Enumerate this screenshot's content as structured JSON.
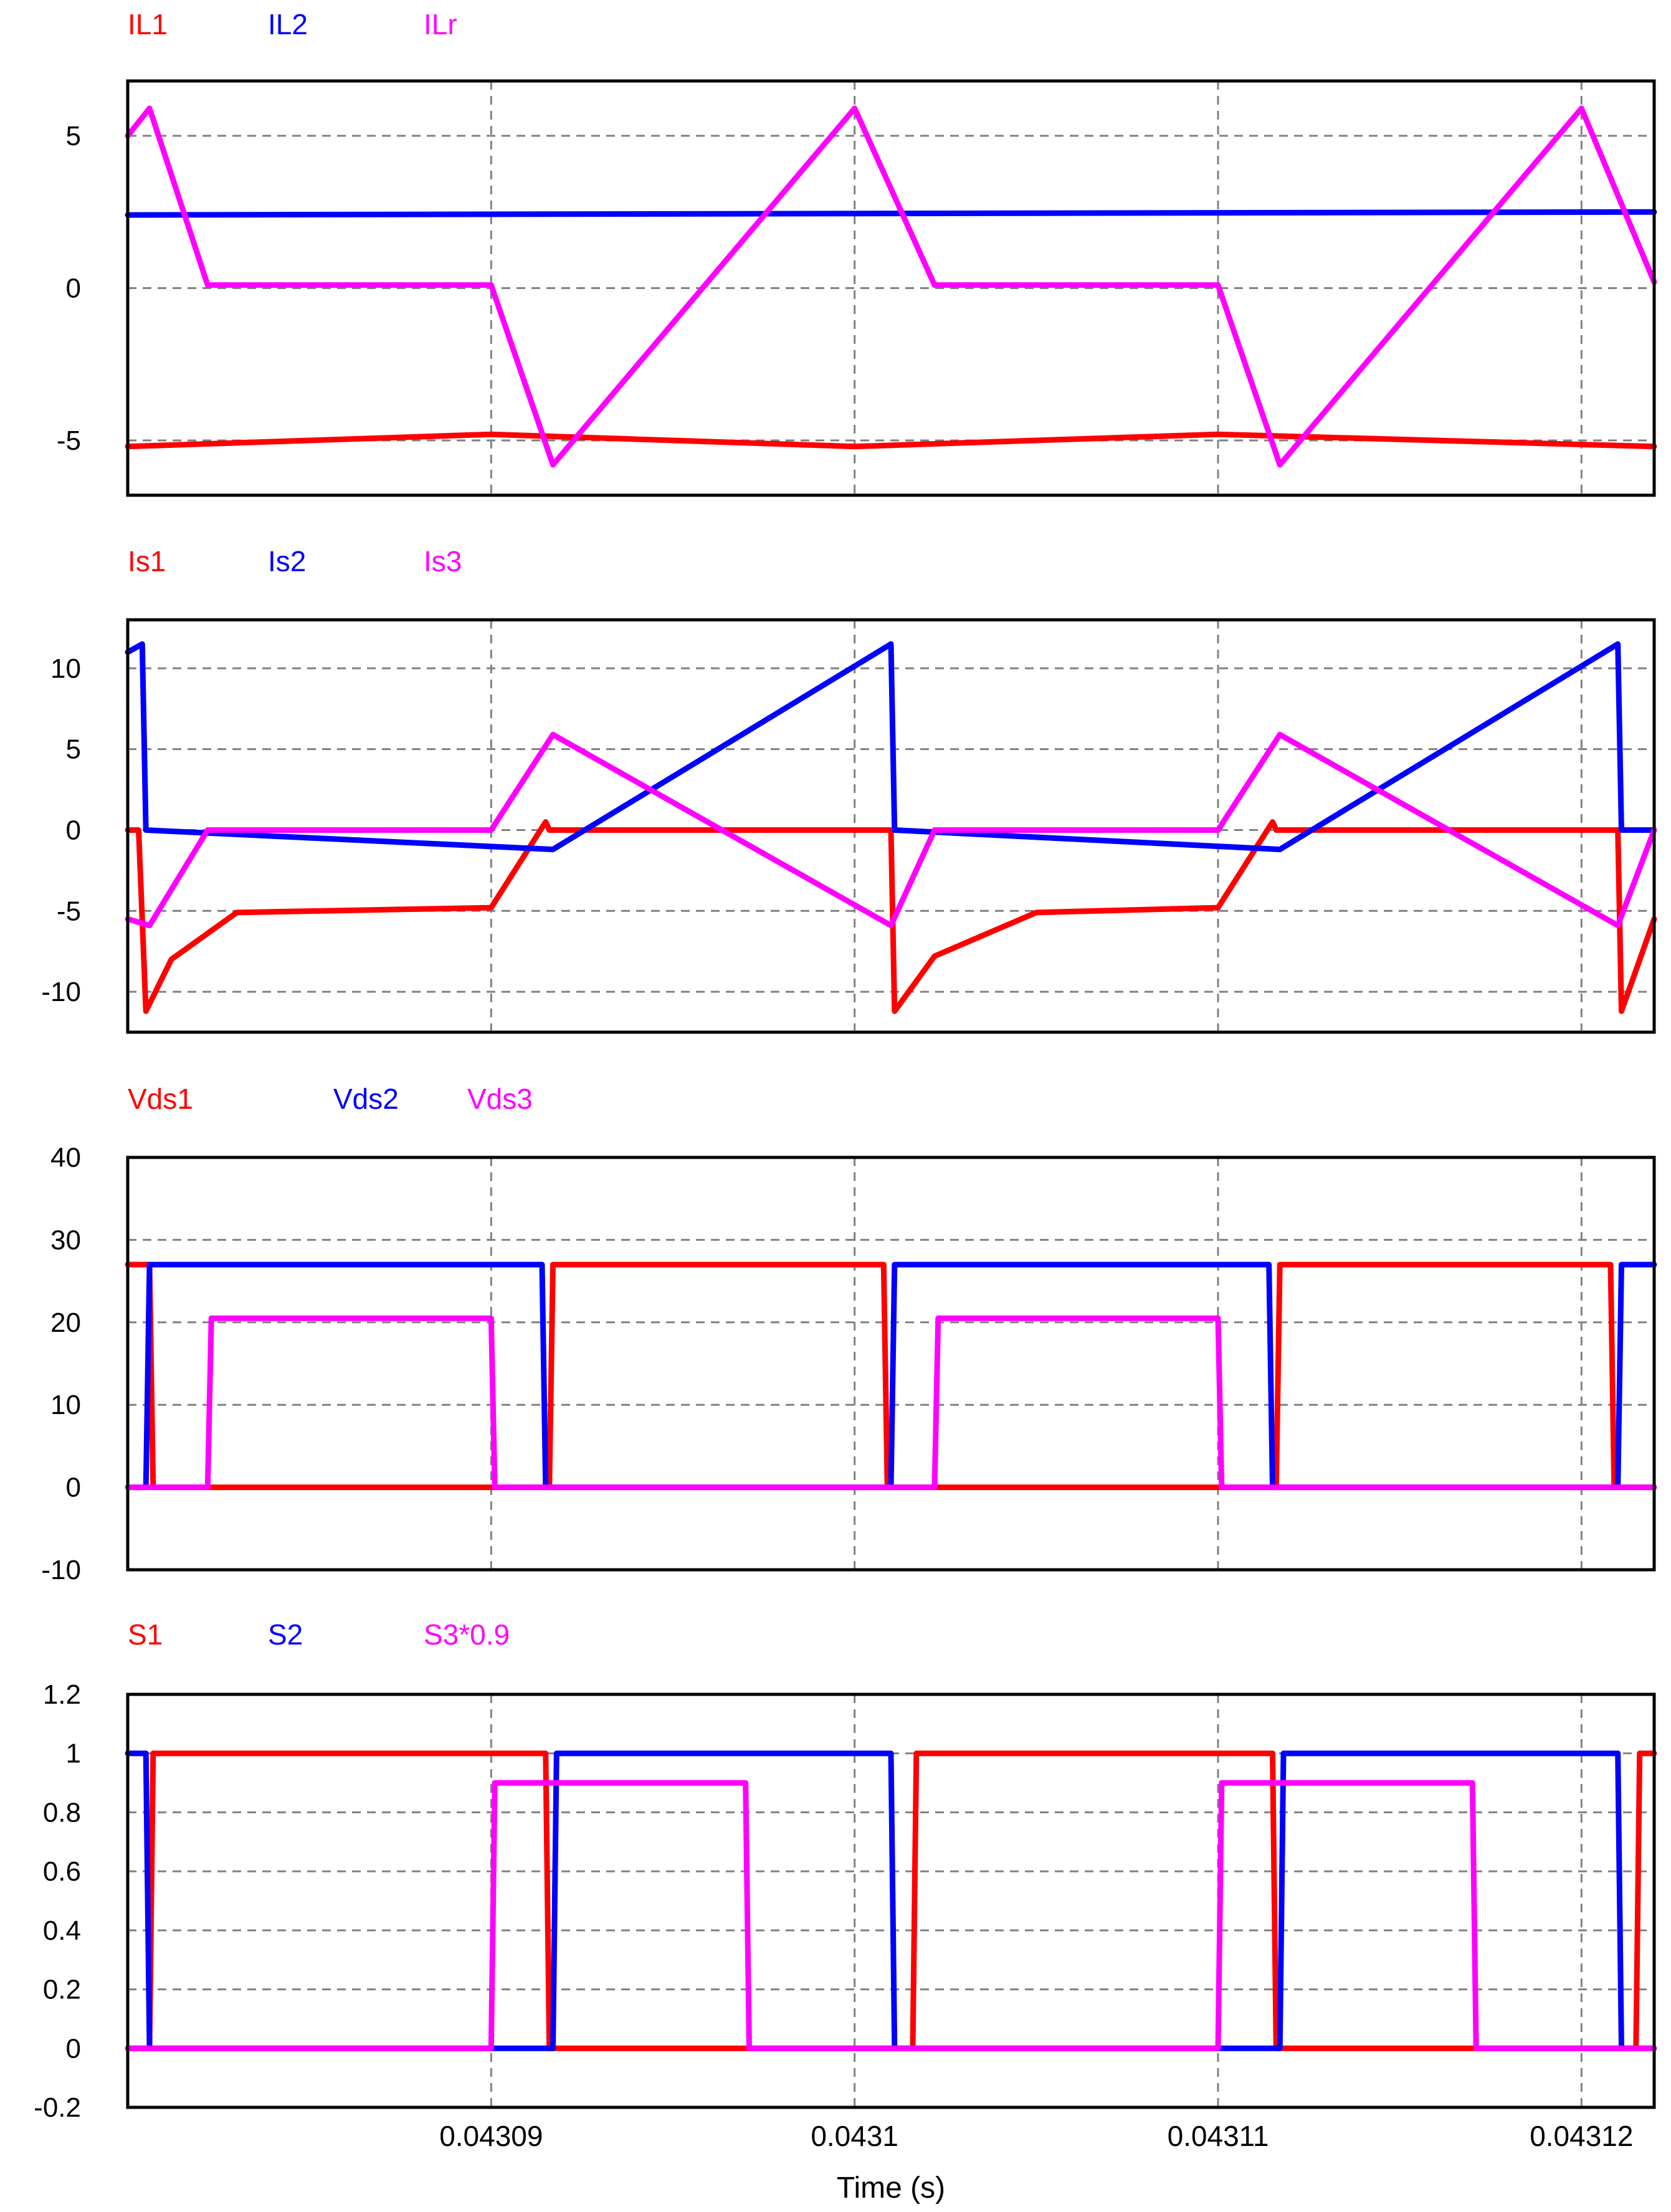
{
  "colors": {
    "red": "#ff0000",
    "blue": "#0000ff",
    "magenta": "#ff00ff",
    "frame": "#000000",
    "grid": "#808080",
    "axis_text": "#000000"
  },
  "chart_data": [
    {
      "type": "line",
      "title": "",
      "xlabel": "",
      "ylabel": "",
      "xlim": [
        0.04308,
        0.043122
      ],
      "ylim": [
        -6.8,
        6.8
      ],
      "xticks": [
        0.04309,
        0.0431,
        0.04311,
        0.04312
      ],
      "yticks": [
        -5,
        0,
        5
      ],
      "ytick_labels": [
        "-5",
        "0",
        "5"
      ],
      "grid": true,
      "legend": "top-left",
      "series": [
        {
          "name": "IL1",
          "color": "#ff0000",
          "x": [
            0.04308,
            0.04309,
            0.0431,
            0.04311,
            0.043122
          ],
          "y": [
            -5.2,
            -4.8,
            -5.2,
            -4.8,
            -5.2
          ]
        },
        {
          "name": "IL2",
          "color": "#0000ff",
          "x": [
            0.04308,
            0.043122
          ],
          "y": [
            2.4,
            2.5
          ]
        },
        {
          "name": "ILr",
          "color": "#ff00ff",
          "x": [
            0.04308,
            0.04308,
            0.0430806,
            0.0430822,
            0.04309,
            0.0430917,
            0.0431,
            0.0431022,
            0.04311,
            0.0431117,
            0.04312,
            0.043122
          ],
          "y": [
            5.0,
            5.0,
            5.9,
            0.1,
            0.1,
            -5.8,
            5.9,
            0.1,
            0.1,
            -5.8,
            5.9,
            0.2
          ]
        }
      ]
    },
    {
      "type": "line",
      "title": "",
      "xlabel": "",
      "ylabel": "",
      "xlim": [
        0.04308,
        0.043122
      ],
      "ylim": [
        -12.5,
        13
      ],
      "xticks": [
        0.04309,
        0.0431,
        0.04311,
        0.04312
      ],
      "yticks": [
        -10,
        -5,
        0,
        5,
        10
      ],
      "ytick_labels": [
        "-10",
        "-5",
        "0",
        "5",
        "10"
      ],
      "grid": true,
      "legend": "top-left",
      "series": [
        {
          "name": "Is1",
          "color": "#ff0000",
          "x": [
            0.04308,
            0.0430803,
            0.0430805,
            0.0430812,
            0.043083,
            0.04309,
            0.0430915,
            0.0430916,
            0.043101,
            0.0431011,
            0.0431022,
            0.043105,
            0.04311,
            0.0431115,
            0.0431116,
            0.043121,
            0.0431211,
            0.043122
          ],
          "y": [
            0.0,
            0.0,
            -11.2,
            -8.0,
            -5.1,
            -4.8,
            0.5,
            0.0,
            0.0,
            -11.2,
            -7.8,
            -5.1,
            -4.8,
            0.5,
            0.0,
            0.0,
            -11.2,
            -5.5
          ]
        },
        {
          "name": "Is2",
          "color": "#0000ff",
          "x": [
            0.04308,
            0.0430804,
            0.0430805,
            0.0430917,
            0.043101,
            0.0431011,
            0.0431117,
            0.043121,
            0.0431211,
            0.043122
          ],
          "y": [
            11.0,
            11.5,
            0.0,
            -1.2,
            11.5,
            0.0,
            -1.2,
            11.5,
            0.0,
            0.0
          ]
        },
        {
          "name": "Is3",
          "color": "#ff00ff",
          "x": [
            0.04308,
            0.0430806,
            0.0430822,
            0.04309,
            0.0430917,
            0.043101,
            0.0431022,
            0.04311,
            0.0431117,
            0.043121,
            0.043122
          ],
          "y": [
            -5.5,
            -5.9,
            0.0,
            0.0,
            5.9,
            -5.9,
            0.0,
            0.0,
            5.9,
            -5.9,
            0.0
          ]
        }
      ]
    },
    {
      "type": "line",
      "title": "",
      "xlabel": "",
      "ylabel": "",
      "xlim": [
        0.04308,
        0.043122
      ],
      "ylim": [
        -10,
        40
      ],
      "xticks": [
        0.04309,
        0.0431,
        0.04311,
        0.04312
      ],
      "yticks": [
        -10,
        0,
        10,
        20,
        30,
        40
      ],
      "ytick_labels": [
        "-10",
        "0",
        "10",
        "20",
        "30",
        "40"
      ],
      "grid": true,
      "legend": "top-left",
      "series": [
        {
          "name": "Vds1",
          "color": "#ff0000",
          "x": [
            0.04308,
            0.0430806,
            0.0430807,
            0.0430916,
            0.0430917,
            0.0431008,
            0.0431009,
            0.0431116,
            0.0431117,
            0.0431208,
            0.0431209,
            0.043122
          ],
          "y": [
            27,
            27,
            0,
            0,
            27,
            27,
            0,
            0,
            27,
            27,
            0,
            0
          ]
        },
        {
          "name": "Vds2",
          "color": "#0000ff",
          "x": [
            0.04308,
            0.0430805,
            0.0430806,
            0.0430914,
            0.0430915,
            0.043101,
            0.0431011,
            0.0431114,
            0.0431115,
            0.043121,
            0.0431211,
            0.043122
          ],
          "y": [
            0,
            0,
            27,
            27,
            0,
            0,
            27,
            27,
            0,
            0,
            27,
            27
          ]
        },
        {
          "name": "Vds3",
          "color": "#ff00ff",
          "x": [
            0.04308,
            0.0430822,
            0.0430823,
            0.04309,
            0.0430901,
            0.0431022,
            0.0431023,
            0.04311,
            0.0431101,
            0.043122
          ],
          "y": [
            0,
            0,
            20.5,
            20.5,
            0,
            0,
            20.5,
            20.5,
            0,
            0
          ]
        }
      ]
    },
    {
      "type": "line",
      "title": "",
      "xlabel": "Time (s)",
      "ylabel": "",
      "xlim": [
        0.04308,
        0.043122
      ],
      "ylim": [
        -0.2,
        1.2
      ],
      "xticks": [
        0.04309,
        0.0431,
        0.04311,
        0.04312
      ],
      "xtick_labels": [
        "0.04309",
        "0.0431",
        "0.04311",
        "0.04312"
      ],
      "yticks": [
        -0.2,
        0,
        0.2,
        0.4,
        0.6,
        0.8,
        1,
        1.2
      ],
      "ytick_labels": [
        "-0.2",
        "0",
        "0.2",
        "0.4",
        "0.6",
        "0.8",
        "1",
        "1.2"
      ],
      "grid": true,
      "legend": "top-left",
      "series": [
        {
          "name": "S1",
          "color": "#ff0000",
          "x": [
            0.04308,
            0.0430806,
            0.0430807,
            0.0430915,
            0.0430916,
            0.0431016,
            0.0431017,
            0.0431115,
            0.0431116,
            0.0431215,
            0.0431216,
            0.043122
          ],
          "y": [
            0,
            0,
            1,
            1,
            0,
            0,
            1,
            1,
            0,
            0,
            1,
            1
          ]
        },
        {
          "name": "S2",
          "color": "#0000ff",
          "x": [
            0.04308,
            0.0430805,
            0.0430806,
            0.0430917,
            0.0430918,
            0.043101,
            0.0431011,
            0.0431117,
            0.0431118,
            0.043121,
            0.0431211,
            0.043122
          ],
          "y": [
            1,
            1,
            0,
            0,
            1,
            1,
            0,
            0,
            1,
            1,
            0,
            0
          ]
        },
        {
          "name": "S3*0.9",
          "color": "#ff00ff",
          "x": [
            0.04308,
            0.04309,
            0.0430901,
            0.043097,
            0.0430971,
            0.04311,
            0.0431101,
            0.043117,
            0.0431171,
            0.043122
          ],
          "y": [
            0,
            0,
            0.9,
            0.9,
            0,
            0,
            0.9,
            0.9,
            0,
            0
          ]
        }
      ]
    }
  ]
}
